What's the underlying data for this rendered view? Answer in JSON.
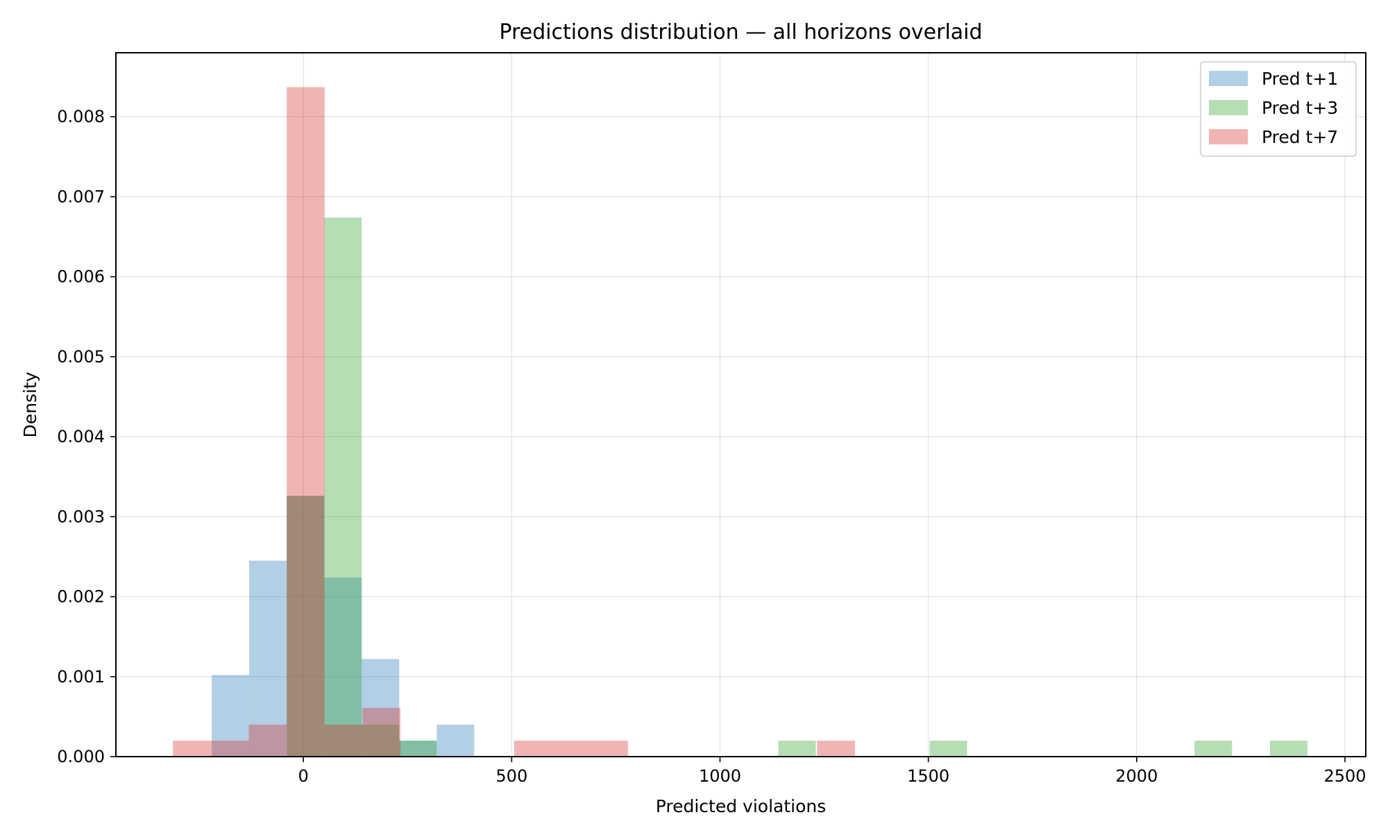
{
  "chart_data": {
    "type": "bar",
    "subtype": "histogram-overlay",
    "title": "Predictions distribution — all horizons overlaid",
    "xlabel": "Predicted violations",
    "ylabel": "Density",
    "xlim": [
      -450,
      2550
    ],
    "ylim": [
      0,
      0.0088
    ],
    "xticks": [
      0,
      500,
      1000,
      1500,
      2000,
      2500
    ],
    "yticks": [
      0.0,
      0.001,
      0.002,
      0.003,
      0.004,
      0.005,
      0.006,
      0.007,
      0.008
    ],
    "ytick_labels": [
      "0.000",
      "0.001",
      "0.002",
      "0.003",
      "0.004",
      "0.005",
      "0.006",
      "0.007",
      "0.008"
    ],
    "xtick_labels": [
      "0",
      "500",
      "1000",
      "1500",
      "2000",
      "2500"
    ],
    "grid": true,
    "legend_position": "top-right",
    "series": [
      {
        "name": "Pred t+1",
        "color": "#1f77b4",
        "bins": [
          {
            "x0": -220,
            "x1": -130,
            "value": 0.00102
          },
          {
            "x0": -130,
            "x1": -40,
            "value": 0.00245
          },
          {
            "x0": -40,
            "x1": 50,
            "value": 0.00326
          },
          {
            "x0": 50,
            "x1": 140,
            "value": 0.00224
          },
          {
            "x0": 140,
            "x1": 230,
            "value": 0.00122
          },
          {
            "x0": 230,
            "x1": 320,
            "value": 0.0002
          },
          {
            "x0": 320,
            "x1": 410,
            "value": 0.0004
          }
        ]
      },
      {
        "name": "Pred t+3",
        "color": "#2ca02c",
        "bins": [
          {
            "x0": -40,
            "x1": 50,
            "value": 0.00326
          },
          {
            "x0": 50,
            "x1": 140,
            "value": 0.00674
          },
          {
            "x0": 140,
            "x1": 230,
            "value": 0.0004
          },
          {
            "x0": 230,
            "x1": 320,
            "value": 0.0002
          },
          {
            "x0": 1140,
            "x1": 1230,
            "value": 0.0002
          },
          {
            "x0": 1503,
            "x1": 1593,
            "value": 0.0002
          },
          {
            "x0": 2139,
            "x1": 2229,
            "value": 0.0002
          },
          {
            "x0": 2320,
            "x1": 2410,
            "value": 0.0002
          }
        ]
      },
      {
        "name": "Pred t+7",
        "color": "#d62728",
        "bins": [
          {
            "x0": -313,
            "x1": -222,
            "value": 0.0002
          },
          {
            "x0": -222,
            "x1": -131,
            "value": 0.0002
          },
          {
            "x0": -131,
            "x1": -40,
            "value": 0.0004
          },
          {
            "x0": -40,
            "x1": 51,
            "value": 0.00837
          },
          {
            "x0": 51,
            "x1": 142,
            "value": 0.0004
          },
          {
            "x0": 142,
            "x1": 233,
            "value": 0.00061
          },
          {
            "x0": 506,
            "x1": 597,
            "value": 0.0002
          },
          {
            "x0": 597,
            "x1": 688,
            "value": 0.0002
          },
          {
            "x0": 688,
            "x1": 779,
            "value": 0.0002
          },
          {
            "x0": 1233,
            "x1": 1324,
            "value": 0.0002
          }
        ]
      }
    ]
  }
}
